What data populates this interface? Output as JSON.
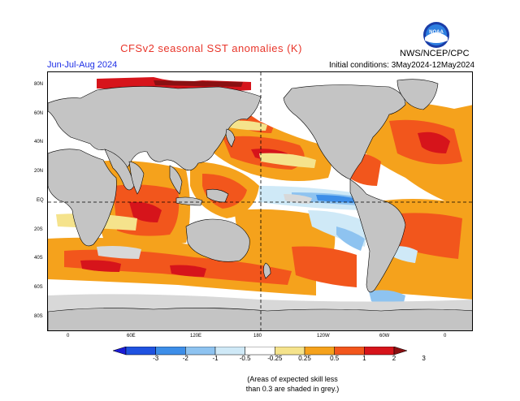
{
  "header": {
    "title": "CFSv2 seasonal SST anomalies (K)",
    "season": "Jun-Jul-Aug 2024",
    "initial_conditions": "Initial conditions: 3May2024-12May2024",
    "org": "NWS/NCEP/CPC",
    "logo_text": "NOAA"
  },
  "map": {
    "lat_labels": [
      "80N",
      "60N",
      "40N",
      "20N",
      "EQ",
      "20S",
      "40S",
      "60S",
      "80S"
    ],
    "lon_labels": [
      "0",
      "60E",
      "120E",
      "180",
      "120W",
      "60W",
      "0"
    ]
  },
  "legend": {
    "ticks": [
      "-3",
      "-2",
      "-1",
      "-0.5",
      "-0.25",
      "0.25",
      "0.5",
      "1",
      "2",
      "3"
    ],
    "colors": [
      "#1b1bd6",
      "#1f52e0",
      "#3d8ee8",
      "#8ec3f0",
      "#cfe9f7",
      "#ffffff",
      "#f5e38c",
      "#f5a21c",
      "#f2561c",
      "#d6141b",
      "#8a1012"
    ],
    "land_color": "#c4c4c4",
    "low_skill_color": "#d8d8d8"
  },
  "note": {
    "line1": "(Areas of expected skill less",
    "line2": "than 0.3 are shaded in grey.)"
  }
}
